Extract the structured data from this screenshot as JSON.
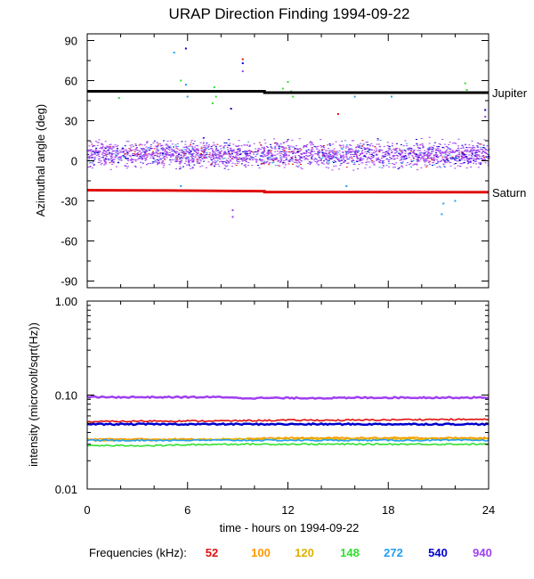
{
  "chart_data": [
    {
      "type": "scatter",
      "title": "URAP Direction Finding  1994-09-22",
      "ylabel": "Azimuthal angle (deg)",
      "xlim": [
        0,
        24
      ],
      "ylim": [
        -95,
        95
      ],
      "yticks": [
        90,
        60,
        30,
        0,
        -30,
        -60,
        -90
      ],
      "annotations": [
        {
          "text": "Jupiter",
          "y": 51
        },
        {
          "text": "Saturn",
          "y": -23.5
        }
      ],
      "reference_lines": [
        {
          "name": "Jupiter",
          "color": "#000000",
          "points": [
            [
              0,
              52
            ],
            [
              10.6,
              52
            ],
            [
              10.6,
              51
            ],
            [
              24,
              51
            ]
          ]
        },
        {
          "name": "Saturn",
          "color": "#e01010",
          "points": [
            [
              0,
              -22
            ],
            [
              5,
              -22.3
            ],
            [
              10.6,
              -22.7
            ],
            [
              10.6,
              -23.4
            ],
            [
              24,
              -23.5
            ]
          ]
        }
      ],
      "band": {
        "color": "#a040f0",
        "y_center": 5,
        "y_spread": 7,
        "x_range": [
          0,
          24
        ]
      },
      "outliers": [
        {
          "x": 1.9,
          "y": 47,
          "color": "#30e030"
        },
        {
          "x": 5.2,
          "y": 81,
          "color": "#20a0f0"
        },
        {
          "x": 5.6,
          "y": 60,
          "color": "#30e030"
        },
        {
          "x": 5.9,
          "y": 84,
          "color": "#0000cc"
        },
        {
          "x": 5.9,
          "y": 57,
          "color": "#20a0f0"
        },
        {
          "x": 6.0,
          "y": 48,
          "color": "#20a0f0"
        },
        {
          "x": 7.6,
          "y": 55,
          "color": "#30e030"
        },
        {
          "x": 7.7,
          "y": 48,
          "color": "#30e030"
        },
        {
          "x": 7.5,
          "y": 43,
          "color": "#30e030"
        },
        {
          "x": 8.6,
          "y": 39,
          "color": "#0000cc"
        },
        {
          "x": 9.3,
          "y": 76,
          "color": "#e01010"
        },
        {
          "x": 9.3,
          "y": 73,
          "color": "#0000cc"
        },
        {
          "x": 9.3,
          "y": 67,
          "color": "#a040f0"
        },
        {
          "x": 11.7,
          "y": 54,
          "color": "#30e030"
        },
        {
          "x": 12.0,
          "y": 59,
          "color": "#30e030"
        },
        {
          "x": 12.2,
          "y": 52,
          "color": "#30e030"
        },
        {
          "x": 12.3,
          "y": 48,
          "color": "#30e030"
        },
        {
          "x": 15.0,
          "y": 35,
          "color": "#e01010"
        },
        {
          "x": 16.0,
          "y": 48,
          "color": "#20a0f0"
        },
        {
          "x": 18.2,
          "y": 48,
          "color": "#20a0f0"
        },
        {
          "x": 22.6,
          "y": 58,
          "color": "#30e030"
        },
        {
          "x": 22.7,
          "y": 53,
          "color": "#30e030"
        },
        {
          "x": 23.8,
          "y": 38,
          "color": "#0000cc"
        },
        {
          "x": 23.8,
          "y": 33,
          "color": "#a040f0"
        },
        {
          "x": 5.6,
          "y": -19,
          "color": "#20a0f0"
        },
        {
          "x": 15.5,
          "y": -19,
          "color": "#20a0f0"
        },
        {
          "x": 8.7,
          "y": -37,
          "color": "#a040f0"
        },
        {
          "x": 8.7,
          "y": -42,
          "color": "#a040f0"
        },
        {
          "x": 21.3,
          "y": -32,
          "color": "#20a0f0"
        },
        {
          "x": 21.2,
          "y": -40,
          "color": "#20a0f0"
        },
        {
          "x": 22.0,
          "y": -30,
          "color": "#20a0f0"
        }
      ]
    },
    {
      "type": "line",
      "ylabel": "intensity (microvolt/sqrt(Hz))",
      "xlabel": "time - hours on 1994-09-22",
      "xlim": [
        0,
        24
      ],
      "xticks": [
        0,
        6,
        12,
        18,
        24
      ],
      "ylim": [
        0.01,
        1.0
      ],
      "yscale": "log",
      "ytick_labels": [
        "1.00",
        "0.10",
        "0.01"
      ],
      "ytick_values": [
        1.0,
        0.1,
        0.01
      ],
      "series": [
        {
          "name": "52",
          "color": "#e01010",
          "values": [
            [
              0,
              0.052
            ],
            [
              4,
              0.053
            ],
            [
              8,
              0.053
            ],
            [
              12,
              0.054
            ],
            [
              16,
              0.054
            ],
            [
              20,
              0.055
            ],
            [
              24,
              0.055
            ]
          ]
        },
        {
          "name": "100",
          "color": "#ff9900",
          "values": [
            [
              0,
              0.034
            ],
            [
              4,
              0.034
            ],
            [
              8,
              0.034
            ],
            [
              12,
              0.035
            ],
            [
              16,
              0.035
            ],
            [
              20,
              0.035
            ],
            [
              24,
              0.035
            ]
          ]
        },
        {
          "name": "120",
          "color": "#e0b000",
          "values": [
            [
              0,
              0.033
            ],
            [
              4,
              0.033
            ],
            [
              8,
              0.034
            ],
            [
              12,
              0.034
            ],
            [
              16,
              0.034
            ],
            [
              20,
              0.034
            ],
            [
              24,
              0.034
            ]
          ]
        },
        {
          "name": "148",
          "color": "#30e030",
          "values": [
            [
              0,
              0.029
            ],
            [
              4,
              0.029
            ],
            [
              8,
              0.03
            ],
            [
              12,
              0.03
            ],
            [
              16,
              0.03
            ],
            [
              20,
              0.03
            ],
            [
              24,
              0.03
            ]
          ]
        },
        {
          "name": "272",
          "color": "#20a0f0",
          "values": [
            [
              0,
              0.033
            ],
            [
              4,
              0.033
            ],
            [
              8,
              0.033
            ],
            [
              12,
              0.033
            ],
            [
              16,
              0.033
            ],
            [
              20,
              0.033
            ],
            [
              24,
              0.033
            ]
          ]
        },
        {
          "name": "540",
          "color": "#0000cc",
          "values": [
            [
              0,
              0.049
            ],
            [
              4,
              0.049
            ],
            [
              8,
              0.049
            ],
            [
              12,
              0.049
            ],
            [
              16,
              0.049
            ],
            [
              20,
              0.049
            ],
            [
              24,
              0.049
            ]
          ]
        },
        {
          "name": "940",
          "color": "#a040f0",
          "values": [
            [
              0,
              0.095
            ],
            [
              4,
              0.095
            ],
            [
              8.8,
              0.095
            ],
            [
              8.8,
              0.093
            ],
            [
              12,
              0.093
            ],
            [
              16,
              0.093
            ],
            [
              16,
              0.094
            ],
            [
              20,
              0.094
            ],
            [
              24,
              0.094
            ]
          ]
        }
      ]
    }
  ],
  "legend": {
    "label": "Frequencies (kHz):",
    "items": [
      {
        "text": "52",
        "color": "#e01010"
      },
      {
        "text": "100",
        "color": "#ff9900"
      },
      {
        "text": "120",
        "color": "#e0b000"
      },
      {
        "text": "148",
        "color": "#30e030"
      },
      {
        "text": "272",
        "color": "#20a0f0"
      },
      {
        "text": "540",
        "color": "#0000cc"
      },
      {
        "text": "940",
        "color": "#a040f0"
      }
    ]
  }
}
